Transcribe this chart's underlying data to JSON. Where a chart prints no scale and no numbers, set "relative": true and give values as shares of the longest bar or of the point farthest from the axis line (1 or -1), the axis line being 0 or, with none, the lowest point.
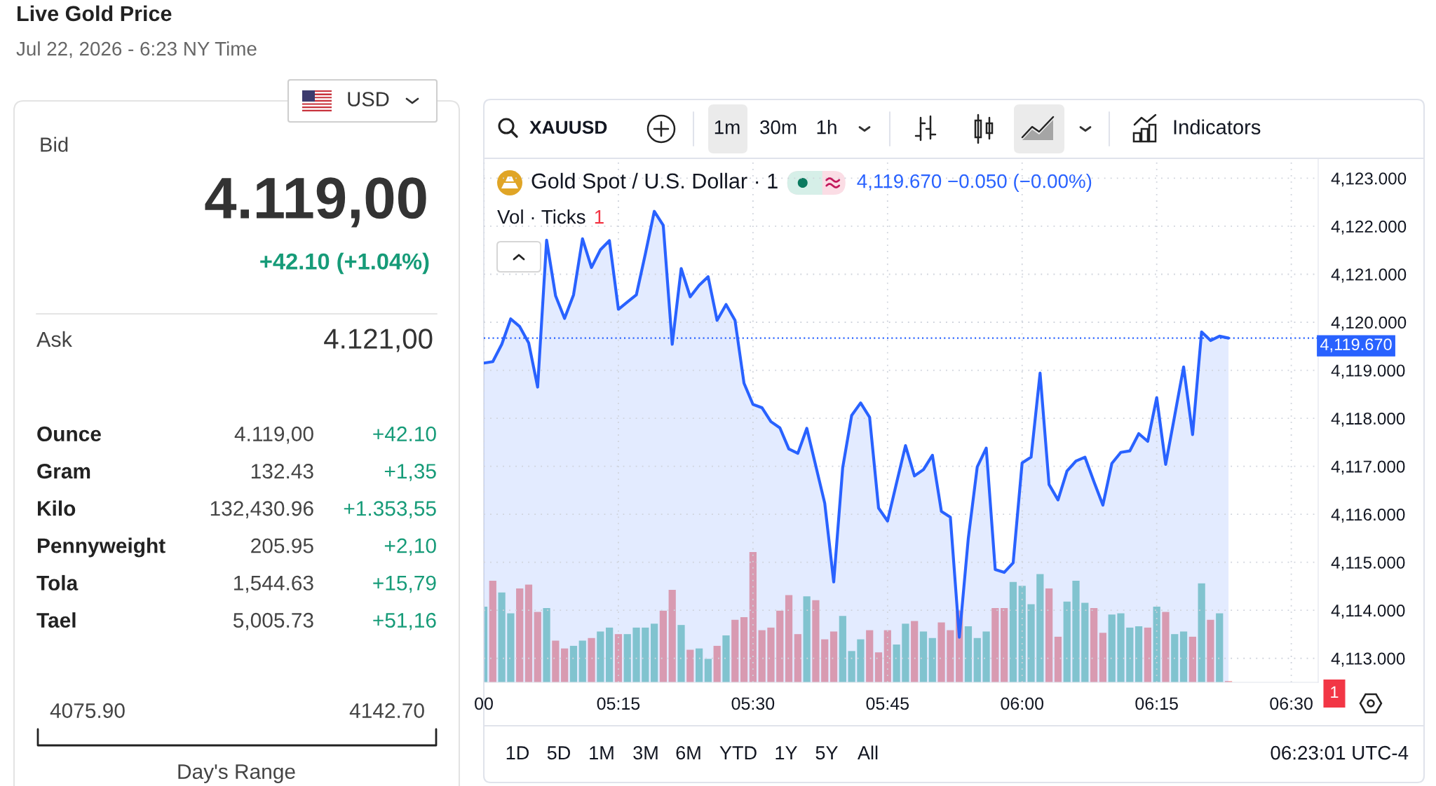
{
  "chart_data": [
    {
      "type": "other",
      "title": "Live Gold Price",
      "subtitle": "Jul 22, 2026 - 6:23 NY Time",
      "annotations": [
        "USD",
        "Bid",
        "4.119,00",
        "+42.10 (+1.04%)",
        "Ask",
        "4.121,00",
        "Ounce",
        "4.119,00",
        "+42.10",
        "Gram",
        "132.43",
        "+1,35",
        "Kilo",
        "132,430.96",
        "+1.353,55",
        "Pennyweight",
        "205.95",
        "+2,10",
        "Tola",
        "1,544.63",
        "+15,79",
        "Tael",
        "5,005.73",
        "+51,16",
        "4075.90",
        "4142.70",
        "Day's Range"
      ]
    },
    {
      "type": "area",
      "title": "Gold Spot / U.S. Dollar · 1",
      "color": "#2962ff",
      "x": [
        "2026-07-22T05:00",
        "2026-07-22T05:01",
        "2026-07-22T05:02",
        "2026-07-22T05:03",
        "2026-07-22T05:04",
        "2026-07-22T05:05",
        "2026-07-22T05:06",
        "2026-07-22T05:07",
        "2026-07-22T05:08",
        "2026-07-22T05:09",
        "2026-07-22T05:10",
        "2026-07-22T05:11",
        "2026-07-22T05:12",
        "2026-07-22T05:13",
        "2026-07-22T05:14",
        "2026-07-22T05:15",
        "2026-07-22T05:16",
        "2026-07-22T05:17",
        "2026-07-22T05:18",
        "2026-07-22T05:19",
        "2026-07-22T05:20",
        "2026-07-22T05:21",
        "2026-07-22T05:22",
        "2026-07-22T05:23",
        "2026-07-22T05:24",
        "2026-07-22T05:25",
        "2026-07-22T05:26",
        "2026-07-22T05:27",
        "2026-07-22T05:28",
        "2026-07-22T05:29",
        "2026-07-22T05:30",
        "2026-07-22T05:31",
        "2026-07-22T05:32",
        "2026-07-22T05:33",
        "2026-07-22T05:34",
        "2026-07-22T05:35",
        "2026-07-22T05:36",
        "2026-07-22T05:37",
        "2026-07-22T05:38",
        "2026-07-22T05:39",
        "2026-07-22T05:40",
        "2026-07-22T05:41",
        "2026-07-22T05:42",
        "2026-07-22T05:43",
        "2026-07-22T05:44",
        "2026-07-22T05:45",
        "2026-07-22T05:46",
        "2026-07-22T05:47",
        "2026-07-22T05:48",
        "2026-07-22T05:49",
        "2026-07-22T05:50",
        "2026-07-22T05:51",
        "2026-07-22T05:52",
        "2026-07-22T05:53",
        "2026-07-22T05:54",
        "2026-07-22T05:55",
        "2026-07-22T05:56",
        "2026-07-22T05:57",
        "2026-07-22T05:58",
        "2026-07-22T05:59",
        "2026-07-22T06:00",
        "2026-07-22T06:01",
        "2026-07-22T06:02",
        "2026-07-22T06:03",
        "2026-07-22T06:04",
        "2026-07-22T06:05",
        "2026-07-22T06:06",
        "2026-07-22T06:07",
        "2026-07-22T06:08",
        "2026-07-22T06:09",
        "2026-07-22T06:10",
        "2026-07-22T06:11",
        "2026-07-22T06:12",
        "2026-07-22T06:13",
        "2026-07-22T06:14",
        "2026-07-22T06:15",
        "2026-07-22T06:16",
        "2026-07-22T06:17",
        "2026-07-22T06:18",
        "2026-07-22T06:19",
        "2026-07-22T06:20",
        "2026-07-22T06:21",
        "2026-07-22T06:22",
        "2026-07-22T06:23"
      ],
      "values": [
        4119.15,
        4119.18,
        4119.54,
        4120.07,
        4119.91,
        4119.57,
        4118.65,
        4121.71,
        4120.55,
        4120.08,
        4120.57,
        4121.74,
        4121.14,
        4121.51,
        4121.7,
        4120.27,
        4120.42,
        4120.57,
        4121.42,
        4122.31,
        4122.02,
        4119.54,
        4121.12,
        4120.53,
        4120.77,
        4120.95,
        4120.04,
        4120.37,
        4120.04,
        4118.73,
        4118.29,
        4118.22,
        4117.93,
        4117.8,
        4117.36,
        4117.27,
        4117.79,
        4117.01,
        4116.23,
        4114.59,
        4116.97,
        4118.06,
        4118.32,
        4118.02,
        4116.13,
        4115.86,
        4116.65,
        4117.43,
        4116.8,
        4116.93,
        4117.23,
        4116.06,
        4115.94,
        4113.44,
        4115.5,
        4116.99,
        4117.38,
        4114.85,
        4114.79,
        4114.99,
        4117.07,
        4117.19,
        4118.94,
        4116.62,
        4116.3,
        4116.9,
        4117.11,
        4117.19,
        4116.68,
        4116.19,
        4117.06,
        4117.29,
        4117.32,
        4117.68,
        4117.52,
        4118.43,
        4117.04,
        4118.05,
        4119.07,
        4117.66,
        4119.8,
        4119.62,
        4119.71,
        4119.67
      ],
      "xlim": [
        "2026-07-22T05:00",
        "2026-07-22T06:33"
      ],
      "xticks": [
        {
          "value": "2026-07-22T05:00",
          "label": "00"
        },
        {
          "value": "2026-07-22T05:15",
          "label": "05:15"
        },
        {
          "value": "2026-07-22T05:30",
          "label": "05:30"
        },
        {
          "value": "2026-07-22T05:45",
          "label": "05:45"
        },
        {
          "value": "2026-07-22T06:00",
          "label": "06:00"
        },
        {
          "value": "2026-07-22T06:15",
          "label": "06:15"
        },
        {
          "value": "2026-07-22T06:30",
          "label": "06:30"
        }
      ],
      "ylim": [
        4112.5,
        4123.4
      ],
      "yticks": [
        {
          "value": 4113,
          "label": "4,113.000"
        },
        {
          "value": 4114,
          "label": "4,114.000"
        },
        {
          "value": 4115,
          "label": "4,115.000"
        },
        {
          "value": 4116,
          "label": "4,116.000"
        },
        {
          "value": 4117,
          "label": "4,117.000"
        },
        {
          "value": 4118,
          "label": "4,118.000"
        },
        {
          "value": 4119,
          "label": "4,119.000"
        },
        {
          "value": 4120,
          "label": "4,120.000"
        },
        {
          "value": 4121,
          "label": "4,121.000"
        },
        {
          "value": 4122,
          "label": "4,122.000"
        },
        {
          "value": 4123,
          "label": "4,123.000"
        }
      ],
      "grid": true,
      "ref_lines": [
        {
          "axis": "y",
          "value": 4119.67,
          "label": "4,119.670",
          "color": "#2962ff",
          "line_style": "dotted"
        }
      ],
      "annotations": [
        "4,119.670 −0.050 (−0.00%)",
        "XAUUSD",
        "1m",
        "30m",
        "1h",
        "Indicators",
        "1D",
        "5D",
        "1M",
        "3M",
        "6M",
        "YTD",
        "1Y",
        "5Y",
        "All",
        "06:23:01 UTC-4"
      ]
    },
    {
      "type": "bar",
      "relative": true,
      "title": "Vol · Ticks",
      "tick_labels": false,
      "x": [
        "2026-07-22T05:00",
        "2026-07-22T05:01",
        "2026-07-22T05:02",
        "2026-07-22T05:03",
        "2026-07-22T05:04",
        "2026-07-22T05:05",
        "2026-07-22T05:06",
        "2026-07-22T05:07",
        "2026-07-22T05:08",
        "2026-07-22T05:09",
        "2026-07-22T05:10",
        "2026-07-22T05:11",
        "2026-07-22T05:12",
        "2026-07-22T05:13",
        "2026-07-22T05:14",
        "2026-07-22T05:15",
        "2026-07-22T05:16",
        "2026-07-22T05:17",
        "2026-07-22T05:18",
        "2026-07-22T05:19",
        "2026-07-22T05:20",
        "2026-07-22T05:21",
        "2026-07-22T05:22",
        "2026-07-22T05:23",
        "2026-07-22T05:24",
        "2026-07-22T05:25",
        "2026-07-22T05:26",
        "2026-07-22T05:27",
        "2026-07-22T05:28",
        "2026-07-22T05:29",
        "2026-07-22T05:30",
        "2026-07-22T05:31",
        "2026-07-22T05:32",
        "2026-07-22T05:33",
        "2026-07-22T05:34",
        "2026-07-22T05:35",
        "2026-07-22T05:36",
        "2026-07-22T05:37",
        "2026-07-22T05:38",
        "2026-07-22T05:39",
        "2026-07-22T05:40",
        "2026-07-22T05:41",
        "2026-07-22T05:42",
        "2026-07-22T05:43",
        "2026-07-22T05:44",
        "2026-07-22T05:45",
        "2026-07-22T05:46",
        "2026-07-22T05:47",
        "2026-07-22T05:48",
        "2026-07-22T05:49",
        "2026-07-22T05:50",
        "2026-07-22T05:51",
        "2026-07-22T05:52",
        "2026-07-22T05:53",
        "2026-07-22T05:54",
        "2026-07-22T05:55",
        "2026-07-22T05:56",
        "2026-07-22T05:57",
        "2026-07-22T05:58",
        "2026-07-22T05:59",
        "2026-07-22T06:00",
        "2026-07-22T06:01",
        "2026-07-22T06:02",
        "2026-07-22T06:03",
        "2026-07-22T06:04",
        "2026-07-22T06:05",
        "2026-07-22T06:06",
        "2026-07-22T06:07",
        "2026-07-22T06:08",
        "2026-07-22T06:09",
        "2026-07-22T06:10",
        "2026-07-22T06:11",
        "2026-07-22T06:12",
        "2026-07-22T06:13",
        "2026-07-22T06:14",
        "2026-07-22T06:15",
        "2026-07-22T06:16",
        "2026-07-22T06:17",
        "2026-07-22T06:18",
        "2026-07-22T06:19",
        "2026-07-22T06:20",
        "2026-07-22T06:21",
        "2026-07-22T06:22",
        "2026-07-22T06:23"
      ],
      "values": [
        0.58,
        0.78,
        0.69,
        0.53,
        0.72,
        0.75,
        0.54,
        0.57,
        0.32,
        0.26,
        0.28,
        0.32,
        0.34,
        0.39,
        0.42,
        0.37,
        0.37,
        0.42,
        0.42,
        0.45,
        0.55,
        0.71,
        0.44,
        0.25,
        0.26,
        0.18,
        0.28,
        0.36,
        0.48,
        0.5,
        1,
        0.4,
        0.42,
        0.55,
        0.67,
        0.37,
        0.66,
        0.63,
        0.33,
        0.39,
        0.51,
        0.24,
        0.33,
        0.4,
        0.23,
        0.4,
        0.29,
        0.45,
        0.47,
        0.39,
        0.34,
        0.46,
        0.4,
        0.55,
        0.43,
        0.34,
        0.39,
        0.57,
        0.57,
        0.77,
        0.74,
        0.6,
        0.83,
        0.72,
        0.35,
        0.62,
        0.78,
        0.61,
        0.57,
        0.38,
        0.52,
        0.53,
        0.42,
        0.43,
        0.42,
        0.58,
        0.54,
        0.37,
        0.39,
        0.35,
        0.76,
        0.48,
        0.53,
        0.01
      ],
      "colors": [
        "#8fd1c8",
        "#f3a3a6",
        "#8fd1c8",
        "#8fd1c8",
        "#f3a3a6",
        "#f3a3a6",
        "#f3a3a6",
        "#8fd1c8",
        "#f3a3a6",
        "#f3a3a6",
        "#8fd1c8",
        "#8fd1c8",
        "#f3a3a6",
        "#8fd1c8",
        "#8fd1c8",
        "#f3a3a6",
        "#8fd1c8",
        "#8fd1c8",
        "#8fd1c8",
        "#8fd1c8",
        "#f3a3a6",
        "#f3a3a6",
        "#8fd1c8",
        "#f3a3a6",
        "#8fd1c8",
        "#8fd1c8",
        "#f3a3a6",
        "#8fd1c8",
        "#f3a3a6",
        "#f3a3a6",
        "#f3a3a6",
        "#f3a3a6",
        "#f3a3a6",
        "#f3a3a6",
        "#f3a3a6",
        "#f3a3a6",
        "#8fd1c8",
        "#f3a3a6",
        "#f3a3a6",
        "#f3a3a6",
        "#8fd1c8",
        "#8fd1c8",
        "#8fd1c8",
        "#f3a3a6",
        "#f3a3a6",
        "#f3a3a6",
        "#8fd1c8",
        "#8fd1c8",
        "#f3a3a6",
        "#8fd1c8",
        "#8fd1c8",
        "#f3a3a6",
        "#f3a3a6",
        "#f3a3a6",
        "#8fd1c8",
        "#8fd1c8",
        "#8fd1c8",
        "#f3a3a6",
        "#f3a3a6",
        "#8fd1c8",
        "#8fd1c8",
        "#8fd1c8",
        "#8fd1c8",
        "#f3a3a6",
        "#f3a3a6",
        "#8fd1c8",
        "#8fd1c8",
        "#8fd1c8",
        "#f3a3a6",
        "#f3a3a6",
        "#8fd1c8",
        "#8fd1c8",
        "#8fd1c8",
        "#8fd1c8",
        "#f3a3a6",
        "#8fd1c8",
        "#f3a3a6",
        "#8fd1c8",
        "#8fd1c8",
        "#f3a3a6",
        "#8fd1c8",
        "#f3a3a6",
        "#8fd1c8",
        "#f3a3a6"
      ],
      "xlim": [
        "2026-07-22T05:00",
        "2026-07-22T06:33"
      ],
      "annotations": [
        "1",
        "1"
      ]
    }
  ]
}
